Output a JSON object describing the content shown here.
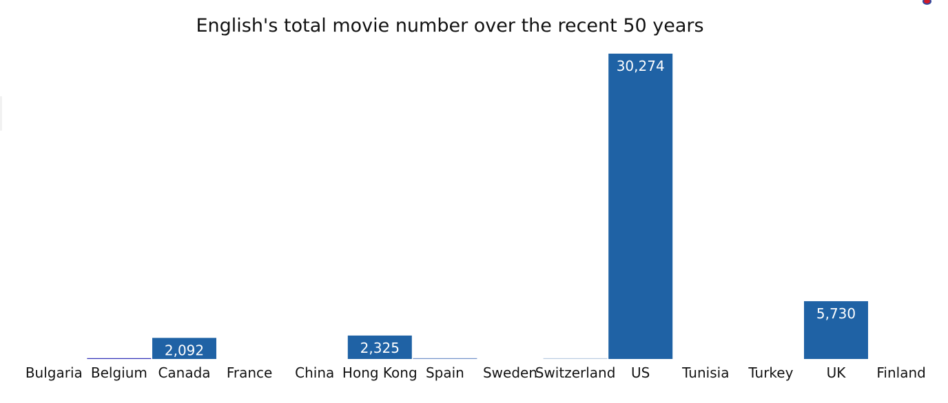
{
  "chart_data": {
    "type": "bar",
    "title": "English's total movie number over the recent 50 years",
    "xlabel": "",
    "ylabel": "",
    "categories": [
      "Bulgaria",
      "Belgium",
      "Canada",
      "France",
      "China",
      "Hong Kong",
      "Spain",
      "Sweden",
      "Switzerland",
      "US",
      "Tunisia",
      "Turkey",
      "UK",
      "Finland"
    ],
    "values": [
      0,
      25,
      2092,
      0,
      0,
      2325,
      10,
      0,
      5,
      30274,
      0,
      0,
      5730,
      0
    ],
    "data_labels": [
      "",
      "",
      "2,092",
      "",
      "",
      "2,325",
      "",
      "",
      "",
      "30,274",
      "",
      "",
      "5,730",
      ""
    ],
    "ylim": [
      0,
      30274
    ],
    "grid": false,
    "legend": "none",
    "bar_color": "#1f62a5",
    "thin_bar_colors": [
      "#ffffff",
      "#2b2bb6",
      "#1f62a5",
      "#ffffff",
      "#ffffff",
      "#1f62a5",
      "#7090c8",
      "#ffffff",
      "#b9cbe2",
      "#1f62a5",
      "#ffffff",
      "#ffffff",
      "#1f62a5",
      "#ffffff"
    ]
  }
}
